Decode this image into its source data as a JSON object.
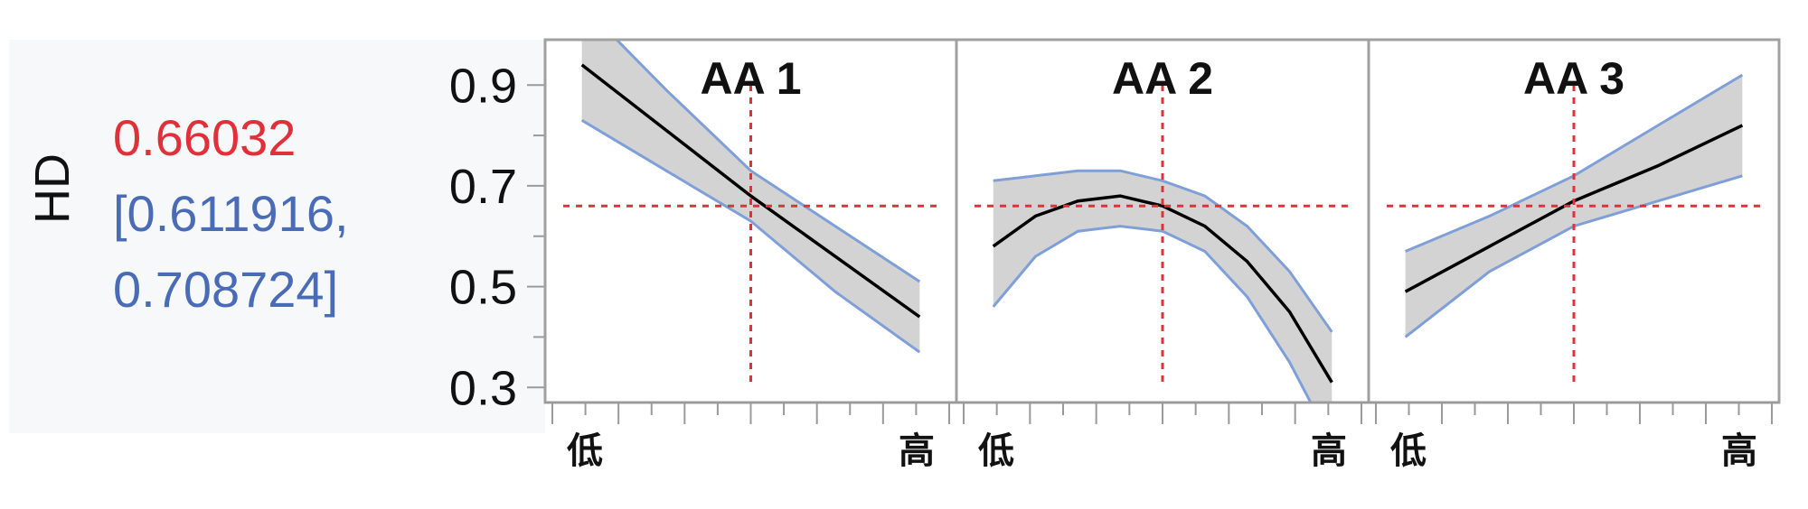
{
  "response": {
    "name": "HD",
    "predicted_value": "0.66032",
    "ci_line1": "[0.611916,",
    "ci_line2": "0.708724]"
  },
  "colors": {
    "curve": "#000000",
    "band_fill": "#d3d3d3",
    "band_edge": "#7f9fd8",
    "crosshair": "#e0313a",
    "frame": "#a0a0a0",
    "axis": "#9a9a9a",
    "predicted": "#e0313a",
    "interval": "#4a6bb6"
  },
  "chart_data": {
    "type": "line",
    "ylim": [
      0.27,
      0.99
    ],
    "yticks": [
      "0.9",
      "0.7",
      "0.5",
      "0.3"
    ],
    "ytick_values": [
      0.9,
      0.7,
      0.5,
      0.3
    ],
    "y_minor_ticks": [
      0.8,
      0.6,
      0.4
    ],
    "current_y": 0.66,
    "panels": [
      {
        "title": "AA 1",
        "xlabel_low": "低",
        "xlabel_high": "高",
        "xlim": [
          -1.1,
          1.1
        ],
        "current_x": 0.0,
        "x": [
          -1.0,
          -0.5,
          0.0,
          0.5,
          1.0
        ],
        "y": [
          0.94,
          0.81,
          0.68,
          0.56,
          0.44
        ],
        "lower": [
          0.83,
          0.73,
          0.63,
          0.49,
          0.37
        ],
        "upper": [
          1.06,
          0.89,
          0.73,
          0.62,
          0.51
        ]
      },
      {
        "title": "AA 2",
        "xlabel_low": "低",
        "xlabel_high": "高",
        "xlim": [
          -1.1,
          1.1
        ],
        "current_x": 0.0,
        "x": [
          -1.0,
          -0.75,
          -0.5,
          -0.25,
          0.0,
          0.25,
          0.5,
          0.75,
          1.0
        ],
        "y": [
          0.58,
          0.64,
          0.67,
          0.68,
          0.66,
          0.62,
          0.55,
          0.45,
          0.31
        ],
        "lower": [
          0.46,
          0.56,
          0.61,
          0.62,
          0.61,
          0.57,
          0.48,
          0.35,
          0.19
        ],
        "upper": [
          0.71,
          0.72,
          0.73,
          0.73,
          0.71,
          0.68,
          0.62,
          0.53,
          0.41
        ]
      },
      {
        "title": "AA 3",
        "xlabel_low": "低",
        "xlabel_high": "高",
        "xlim": [
          -1.1,
          1.1
        ],
        "current_x": 0.0,
        "x": [
          -1.0,
          -0.5,
          0.0,
          0.5,
          1.0
        ],
        "y": [
          0.49,
          0.58,
          0.67,
          0.74,
          0.82
        ],
        "lower": [
          0.4,
          0.53,
          0.62,
          0.67,
          0.72
        ],
        "upper": [
          0.57,
          0.64,
          0.72,
          0.82,
          0.92
        ]
      }
    ]
  }
}
